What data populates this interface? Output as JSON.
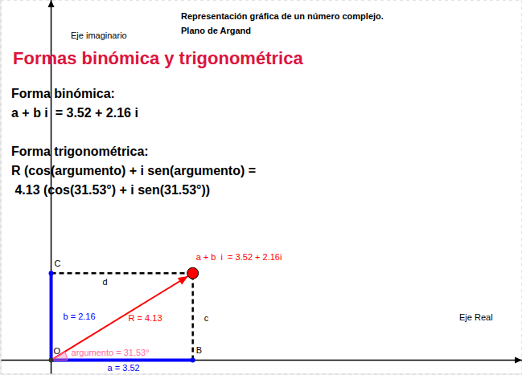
{
  "chart_data": {
    "type": "vector",
    "title": "Formas binómica y trigonométrica",
    "header": [
      "Representación gráfica de un número complejo.",
      "Plano de Argand"
    ],
    "x_label": "Eje Real",
    "y_label": "Eje imaginario",
    "sections": [
      {
        "heading": "Forma binómica:",
        "lines": [
          "a + b i  = 3.52 + 2.16 i"
        ]
      },
      {
        "heading": "Forma trigonométrica:",
        "lines": [
          "R (cos(argumento) + i sen(argumento) =",
          " 4.13 (cos(31.53°) + i sen(31.53°))"
        ]
      }
    ],
    "vector": {
      "x": 3.52,
      "y": 2.16,
      "label": "a + b  i  = 3.52 + 2.16i",
      "color": "#ff0000"
    },
    "argument": 31.53,
    "points": {
      "origin": "O",
      "real": "B",
      "imag": "C"
    },
    "segment_labels": {
      "a": "a = 3.52",
      "b": "b = 2.16",
      "R": "R = 4.13",
      "argument": "argumento = 31.53°",
      "d": "d",
      "c": "c"
    },
    "xlim": [
      -1.25,
      11.7
    ],
    "ylim": [
      -0.35,
      8.95
    ],
    "xticks": [
      -1,
      0,
      1,
      2,
      3,
      4,
      5,
      6,
      7,
      8,
      9,
      10,
      11
    ],
    "yticks": [
      0,
      1,
      2,
      3,
      4,
      5,
      6,
      7,
      8
    ],
    "grid": true,
    "tick_labels": false
  }
}
